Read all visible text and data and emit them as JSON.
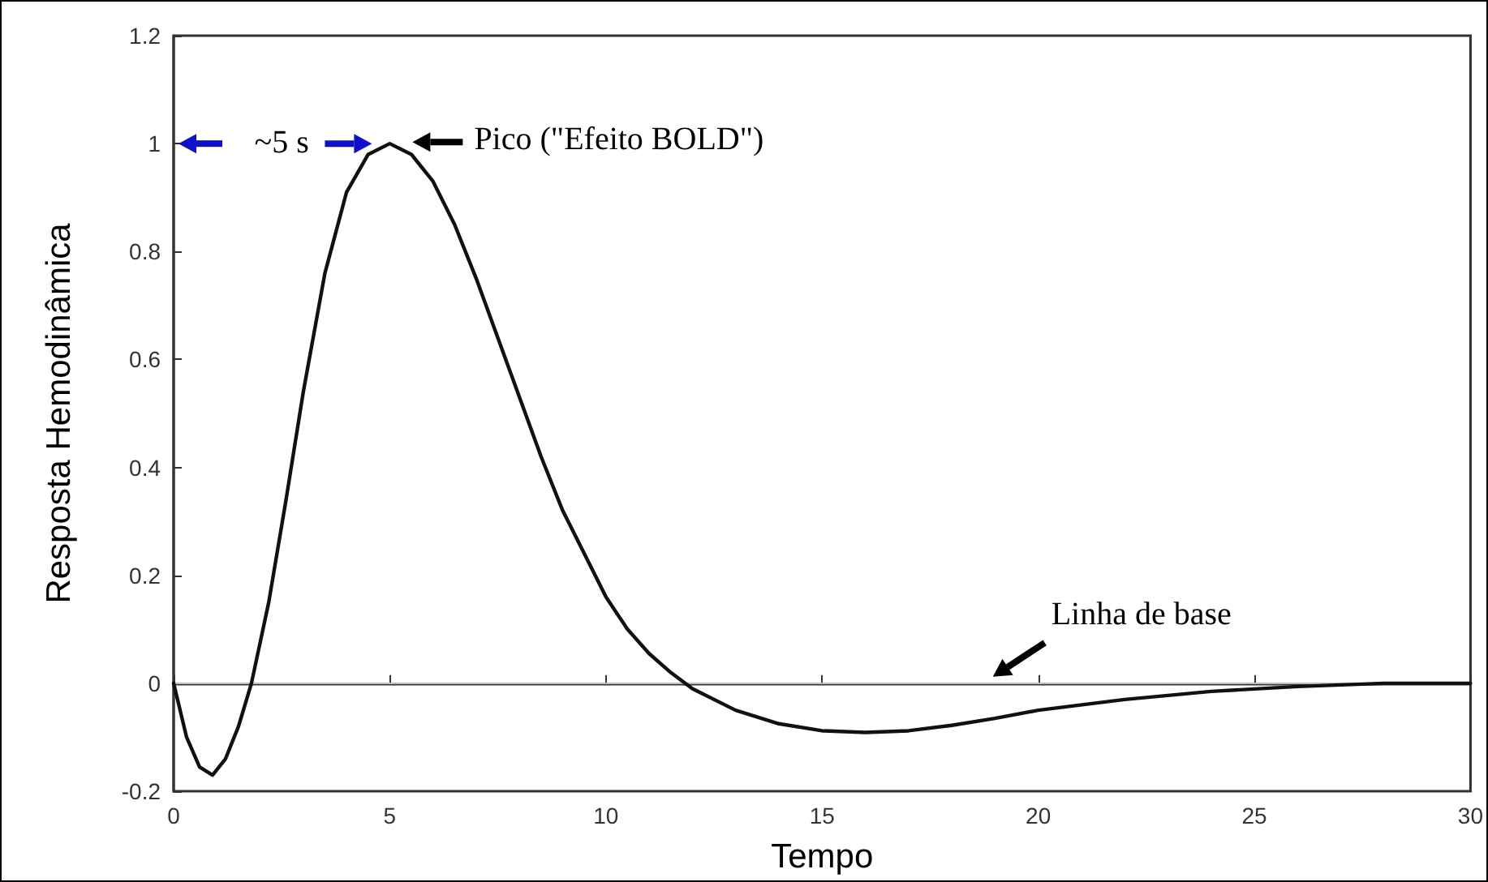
{
  "chart_data": {
    "type": "line",
    "xlabel": "Tempo",
    "ylabel": "Resposta Hemodinâmica",
    "x": [
      0,
      0.3,
      0.6,
      0.9,
      1.2,
      1.5,
      1.8,
      2.2,
      2.6,
      3,
      3.5,
      4,
      4.5,
      5,
      5.5,
      6,
      6.5,
      7,
      7.5,
      8,
      8.5,
      9,
      9.5,
      10,
      10.5,
      11,
      11.5,
      12,
      13,
      14,
      15,
      16,
      17,
      18,
      19,
      20,
      22,
      24,
      26,
      28,
      30
    ],
    "series": [
      {
        "color": "#111111",
        "values": [
          0,
          -0.1,
          -0.155,
          -0.17,
          -0.14,
          -0.08,
          0,
          0.15,
          0.34,
          0.54,
          0.76,
          0.91,
          0.98,
          1,
          0.98,
          0.93,
          0.85,
          0.75,
          0.64,
          0.53,
          0.42,
          0.32,
          0.24,
          0.16,
          0.1,
          0.055,
          0.02,
          -0.01,
          -0.05,
          -0.075,
          -0.088,
          -0.091,
          -0.088,
          -0.078,
          -0.065,
          -0.05,
          -0.03,
          -0.015,
          -0.006,
          0,
          0
        ]
      }
    ],
    "xlim": [
      0,
      30
    ],
    "xticks": [
      0,
      5,
      10,
      15,
      20,
      25,
      30
    ],
    "ylim": [
      -0.2,
      1.2
    ],
    "yticks": [
      -0.2,
      0,
      0.2,
      0.4,
      0.6,
      0.8,
      1,
      1.2
    ],
    "ref_lines": [
      {
        "axis": "y",
        "value": 0,
        "color": "#bbbbbb"
      }
    ],
    "annotations": [
      "~5 s",
      {
        "text": "Pico (\"Efeito BOLD\")",
        "x": 5,
        "y": 1
      },
      {
        "text": "Linha de base",
        "x": 18.8,
        "y": 0
      }
    ],
    "grid": false,
    "marker": "none",
    "line_style": "solid"
  }
}
